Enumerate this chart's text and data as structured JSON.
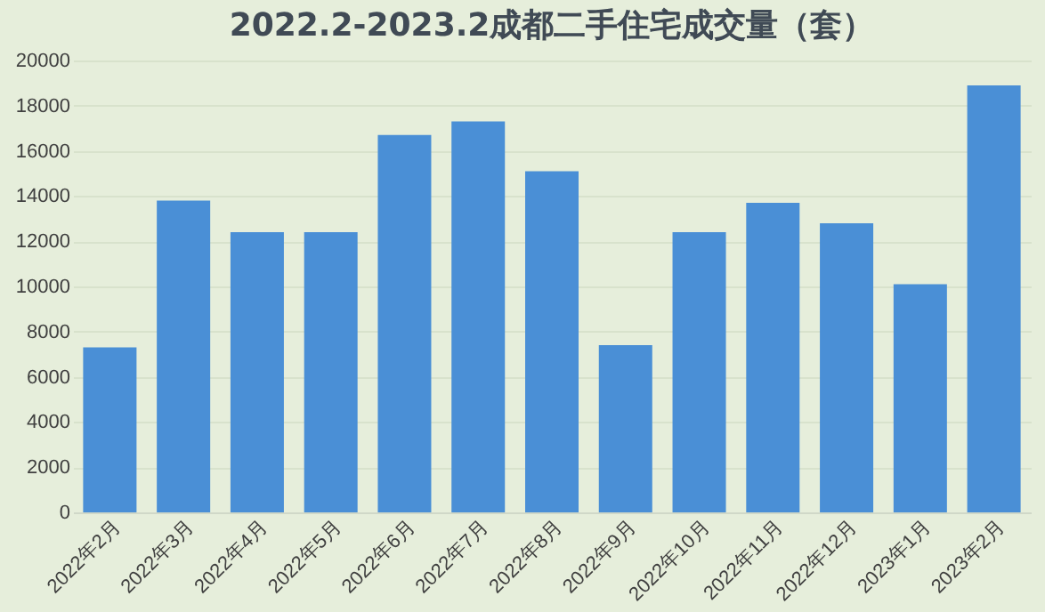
{
  "chart_data": {
    "type": "bar",
    "title": "2022.2-2023.2成都二手住宅成交量（套）",
    "categories": [
      "2022年2月",
      "2022年3月",
      "2022年4月",
      "2022年5月",
      "2022年6月",
      "2022年7月",
      "2022年8月",
      "2022年9月",
      "2022年10月",
      "2022年11月",
      "2022年12月",
      "2023年1月",
      "2023年2月"
    ],
    "values": [
      7300,
      13800,
      12400,
      12400,
      16700,
      17300,
      15100,
      7400,
      12400,
      13700,
      12800,
      10100,
      18900
    ],
    "color": "#4a8fd6",
    "ylim": [
      0,
      20000
    ],
    "yticks": [
      0,
      2000,
      4000,
      6000,
      8000,
      10000,
      12000,
      14000,
      16000,
      18000,
      20000
    ],
    "grid": "y"
  }
}
